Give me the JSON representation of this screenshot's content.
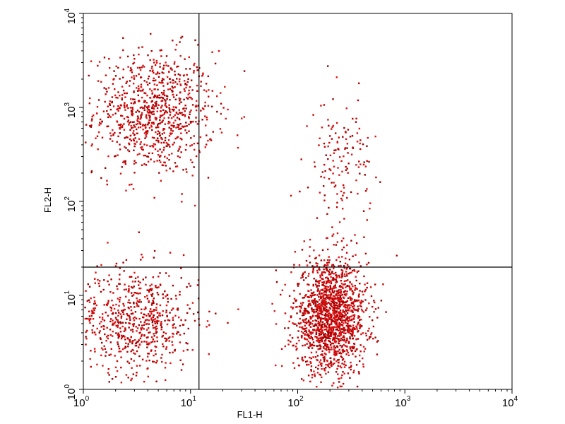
{
  "chart_data": {
    "type": "scatter",
    "title": "",
    "xlabel": "FL1-H",
    "ylabel": "FL2-H",
    "x_scale": "log",
    "y_scale": "log",
    "xlim": [
      1,
      10000
    ],
    "ylim": [
      1,
      10000
    ],
    "grid": false,
    "x_ticks": [
      {
        "base": "10",
        "exp": "0"
      },
      {
        "base": "10",
        "exp": "1"
      },
      {
        "base": "10",
        "exp": "2"
      },
      {
        "base": "10",
        "exp": "3"
      },
      {
        "base": "10",
        "exp": "4"
      }
    ],
    "y_ticks": [
      {
        "base": "10",
        "exp": "0"
      },
      {
        "base": "10",
        "exp": "1"
      },
      {
        "base": "10",
        "exp": "2"
      },
      {
        "base": "10",
        "exp": "3"
      },
      {
        "base": "10",
        "exp": "4"
      }
    ],
    "quadrant_gates": {
      "x": 12,
      "y": 20
    },
    "point_color": "#cc0000",
    "populations": [
      {
        "quadrant": "upper-left",
        "x_center": 4.5,
        "y_center": 900,
        "x_spread_log": 0.28,
        "y_spread_log": 0.33,
        "count": 900
      },
      {
        "quadrant": "lower-left",
        "x_center": 3.0,
        "y_center": 5.5,
        "x_spread_log": 0.3,
        "y_spread_log": 0.28,
        "count": 700
      },
      {
        "quadrant": "lower-right",
        "x_center": 200,
        "y_center": 6.0,
        "x_spread_log": 0.17,
        "y_spread_log": 0.3,
        "count": 1600
      },
      {
        "quadrant": "upper-right",
        "x_center": 250,
        "y_center": 250,
        "x_spread_log": 0.14,
        "y_spread_log": 0.35,
        "count": 150
      }
    ]
  }
}
